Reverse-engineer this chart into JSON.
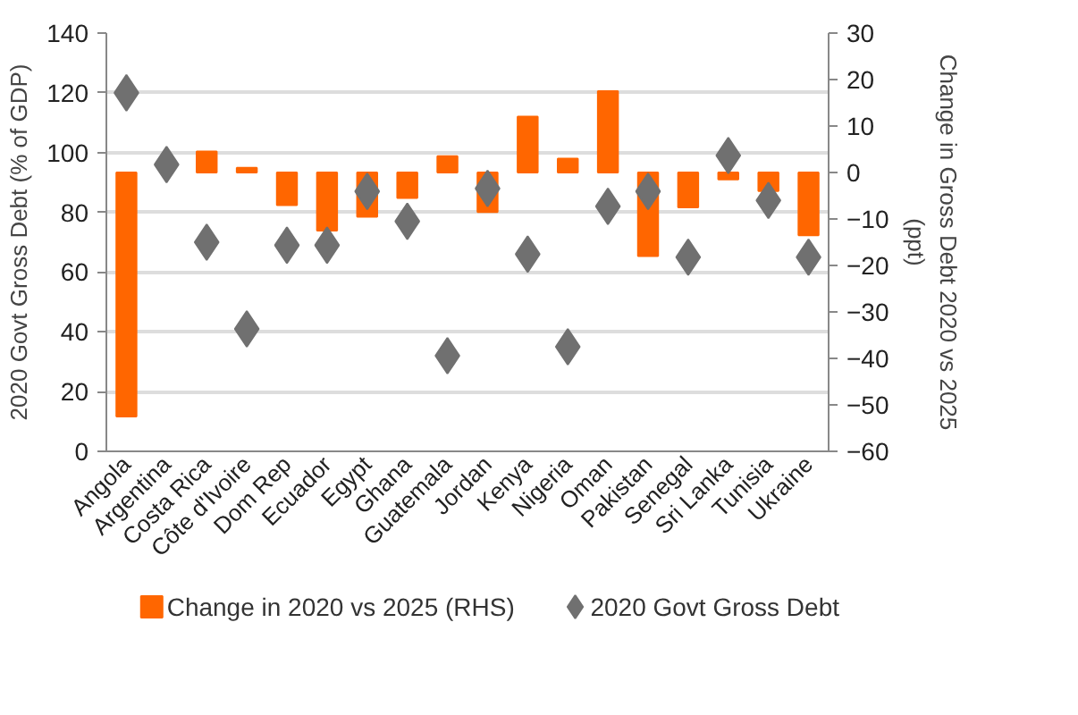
{
  "chart_data": {
    "type": "bar",
    "categories": [
      "Angola",
      "Argentina",
      "Costa Rica",
      "Côte d'Ivoire",
      "Dom Rep",
      "Ecuador",
      "Egypt",
      "Ghana",
      "Guatemala",
      "Jordan",
      "Kenya",
      "Nigeria",
      "Oman",
      "Pakistan",
      "Senegal",
      "Sri Lanka",
      "Tunisia",
      "Ukraine"
    ],
    "series": [
      {
        "name": "Change in 2020 vs 2025 (RHS)",
        "type": "bar",
        "axis": "y2",
        "color": "#ff6600",
        "values": [
          -52.5,
          null,
          4.5,
          1,
          -7,
          -12.5,
          -9.5,
          -5.5,
          3.5,
          -8.5,
          12,
          3,
          17.5,
          -18,
          -7.5,
          -1.5,
          -4,
          -13.5
        ]
      },
      {
        "name": "2020 Govt Gross Debt",
        "type": "scatter",
        "axis": "y",
        "marker": "diamond",
        "color": "#707070",
        "values": [
          120,
          96,
          70,
          41,
          69,
          69,
          87,
          77,
          32,
          88,
          66,
          35,
          82,
          87,
          65,
          99,
          84,
          65
        ]
      }
    ],
    "ylabel": "2020 Govt Gross Debt (% of GDP)",
    "y2label": "Change in Gross Debt 2020 vs 2025\n(ppt)",
    "ylim": [
      0,
      140
    ],
    "yticks": [
      0,
      20,
      40,
      60,
      80,
      100,
      120,
      140
    ],
    "y2lim": [
      -60,
      30
    ],
    "y2ticks": [
      -60,
      -50,
      -40,
      -30,
      -20,
      -10,
      0,
      10,
      20,
      30
    ],
    "grid": "y",
    "legend": "bottom"
  }
}
